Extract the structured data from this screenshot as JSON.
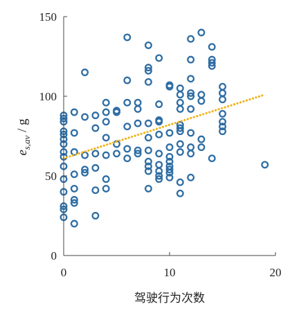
{
  "chart_data": {
    "type": "scatter",
    "title": "",
    "xlabel": "驾驶行为次数",
    "ylabel_main": "e",
    "ylabel_sub": "s,av",
    "ylabel_unit": " / g",
    "xlim": [
      0,
      20
    ],
    "ylim": [
      0,
      150
    ],
    "x_ticks": [
      0,
      10,
      20
    ],
    "y_ticks": [
      0,
      50,
      100,
      150
    ],
    "grid": false,
    "legend": "none",
    "colors": {
      "points": "#2e6da4",
      "trendline": "#f0b41e",
      "axis": "#444444"
    },
    "trendline": {
      "style": "dotted",
      "x": [
        0,
        19
      ],
      "y": [
        61,
        101
      ]
    },
    "points": [
      [
        0,
        24
      ],
      [
        0,
        29
      ],
      [
        0,
        31
      ],
      [
        0,
        40
      ],
      [
        0,
        48
      ],
      [
        0,
        56
      ],
      [
        0,
        62
      ],
      [
        0,
        65
      ],
      [
        0,
        70
      ],
      [
        0,
        73
      ],
      [
        0,
        76
      ],
      [
        0,
        78
      ],
      [
        0,
        84
      ],
      [
        0,
        86
      ],
      [
        0,
        88
      ],
      [
        1,
        20
      ],
      [
        1,
        33
      ],
      [
        1,
        35
      ],
      [
        1,
        42
      ],
      [
        1,
        51
      ],
      [
        1,
        65
      ],
      [
        1,
        77
      ],
      [
        1,
        90
      ],
      [
        2,
        52
      ],
      [
        2,
        54
      ],
      [
        2,
        63
      ],
      [
        2,
        87
      ],
      [
        2,
        115
      ],
      [
        3,
        25
      ],
      [
        3,
        41
      ],
      [
        3,
        55
      ],
      [
        3,
        64
      ],
      [
        3,
        80
      ],
      [
        3,
        88
      ],
      [
        4,
        42
      ],
      [
        4,
        48
      ],
      [
        4,
        63
      ],
      [
        4,
        74
      ],
      [
        4,
        84
      ],
      [
        4,
        90
      ],
      [
        4,
        96
      ],
      [
        5,
        64
      ],
      [
        5,
        70
      ],
      [
        5,
        90
      ],
      [
        5,
        91
      ],
      [
        6,
        61
      ],
      [
        6,
        67
      ],
      [
        6,
        81
      ],
      [
        6,
        96
      ],
      [
        6,
        110
      ],
      [
        6,
        137
      ],
      [
        7,
        64
      ],
      [
        7,
        66
      ],
      [
        7,
        83
      ],
      [
        7,
        92
      ],
      [
        7,
        96
      ],
      [
        8,
        42
      ],
      [
        8,
        53
      ],
      [
        8,
        56
      ],
      [
        8,
        59
      ],
      [
        8,
        66
      ],
      [
        8,
        74
      ],
      [
        8,
        83
      ],
      [
        8,
        109
      ],
      [
        8,
        116
      ],
      [
        8,
        118
      ],
      [
        8,
        132
      ],
      [
        9,
        48
      ],
      [
        9,
        50
      ],
      [
        9,
        53
      ],
      [
        9,
        57
      ],
      [
        9,
        64
      ],
      [
        9,
        76
      ],
      [
        9,
        84
      ],
      [
        9,
        85
      ],
      [
        9,
        95
      ],
      [
        9,
        124
      ],
      [
        10,
        49
      ],
      [
        10,
        52
      ],
      [
        10,
        54
      ],
      [
        10,
        56
      ],
      [
        10,
        59
      ],
      [
        10,
        62
      ],
      [
        10,
        68
      ],
      [
        10,
        77
      ],
      [
        10,
        106
      ],
      [
        10,
        107
      ],
      [
        11,
        39
      ],
      [
        11,
        46
      ],
      [
        11,
        65
      ],
      [
        11,
        70
      ],
      [
        11,
        78
      ],
      [
        11,
        80
      ],
      [
        11,
        82
      ],
      [
        11,
        92
      ],
      [
        11,
        96
      ],
      [
        11,
        101
      ],
      [
        11,
        105
      ],
      [
        12,
        49
      ],
      [
        12,
        64
      ],
      [
        12,
        68
      ],
      [
        12,
        77
      ],
      [
        12,
        92
      ],
      [
        12,
        100
      ],
      [
        12,
        102
      ],
      [
        12,
        111
      ],
      [
        12,
        123
      ],
      [
        12,
        136
      ],
      [
        13,
        68
      ],
      [
        13,
        73
      ],
      [
        13,
        97
      ],
      [
        13,
        101
      ],
      [
        13,
        140
      ],
      [
        14,
        61
      ],
      [
        14,
        119
      ],
      [
        14,
        121
      ],
      [
        14,
        123
      ],
      [
        14,
        131
      ],
      [
        15,
        78
      ],
      [
        15,
        81
      ],
      [
        15,
        84
      ],
      [
        15,
        89
      ],
      [
        15,
        98
      ],
      [
        15,
        102
      ],
      [
        15,
        106
      ],
      [
        19,
        57
      ]
    ]
  }
}
